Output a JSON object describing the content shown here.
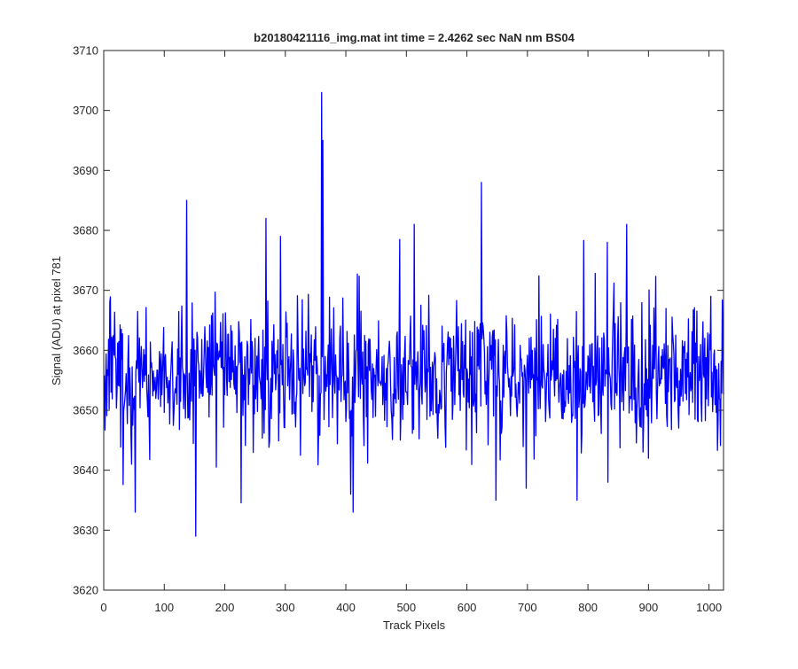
{
  "chart_data": {
    "type": "line",
    "title": "b20180421116_img.mat int time = 2.4262 sec  NaN nm BS04",
    "xlabel": "Track Pixels",
    "ylabel": "Signal (ADU) at pixel 781",
    "xlim": [
      0,
      1024
    ],
    "ylim": [
      3620,
      3710
    ],
    "xticks": [
      0,
      100,
      200,
      300,
      400,
      500,
      600,
      700,
      800,
      900,
      1000
    ],
    "yticks": [
      3620,
      3630,
      3640,
      3650,
      3660,
      3670,
      3680,
      3690,
      3700,
      3710
    ],
    "grid": false,
    "series": [
      {
        "color": "#0000ff",
        "baseline": 3656,
        "noise_amplitude": 8,
        "x_range": [
          1,
          1024
        ],
        "samples": 1024,
        "peaks": [
          {
            "x": 52,
            "y": 3633
          },
          {
            "x": 137,
            "y": 3685
          },
          {
            "x": 152,
            "y": 3629
          },
          {
            "x": 268,
            "y": 3682
          },
          {
            "x": 292,
            "y": 3679
          },
          {
            "x": 360,
            "y": 3703
          },
          {
            "x": 362,
            "y": 3695
          },
          {
            "x": 408,
            "y": 3636
          },
          {
            "x": 412,
            "y": 3633
          },
          {
            "x": 513,
            "y": 3681
          },
          {
            "x": 624,
            "y": 3688
          },
          {
            "x": 648,
            "y": 3635
          },
          {
            "x": 698,
            "y": 3637
          },
          {
            "x": 782,
            "y": 3635
          },
          {
            "x": 833,
            "y": 3638
          },
          {
            "x": 832,
            "y": 3678
          },
          {
            "x": 864,
            "y": 3681
          },
          {
            "x": 900,
            "y": 3642
          },
          {
            "x": 1003,
            "y": 3669
          },
          {
            "x": 1015,
            "y": 3648
          },
          {
            "x": 10,
            "y": 3668
          },
          {
            "x": 46,
            "y": 3641
          }
        ]
      }
    ]
  }
}
